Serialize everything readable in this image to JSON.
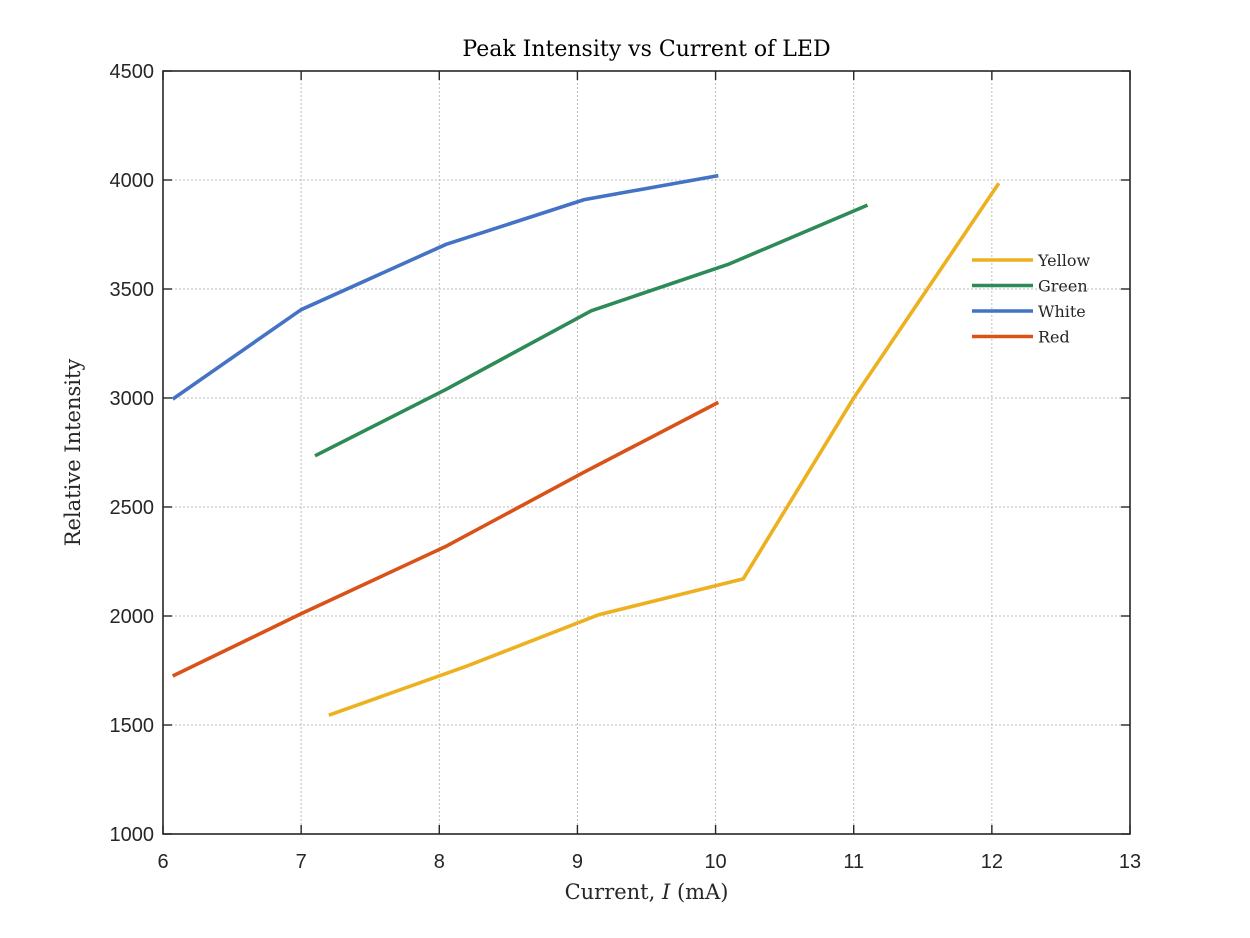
{
  "chart_data": {
    "type": "line",
    "title": "Peak Intensity vs Current of LED",
    "xlabel": "Current, ",
    "xlabel_var": "I",
    "xlabel_unit": " (mA)",
    "ylabel": "Relative Intensity",
    "xlim": [
      6,
      13
    ],
    "ylim": [
      1000,
      4500
    ],
    "xticks": [
      6,
      7,
      8,
      9,
      10,
      11,
      12,
      13
    ],
    "yticks": [
      1000,
      1500,
      2000,
      2500,
      3000,
      3500,
      4000,
      4500
    ],
    "grid": true,
    "legend_position": "right",
    "series": [
      {
        "name": "Yellow",
        "color": "#EDB120",
        "x": [
          7.2,
          8.2,
          9.15,
          10.2,
          11.0,
          12.05
        ],
        "y": [
          1545,
          1770,
          2005,
          2170,
          3000,
          3985
        ]
      },
      {
        "name": "Green",
        "color": "#2E8B57",
        "x": [
          7.1,
          8.05,
          9.1,
          10.1,
          11.1
        ],
        "y": [
          2735,
          3040,
          3400,
          3615,
          3885
        ]
      },
      {
        "name": "White",
        "color": "#4472C4",
        "x": [
          6.07,
          7.0,
          8.05,
          9.05,
          10.02
        ],
        "y": [
          2995,
          3405,
          3705,
          3910,
          4020
        ]
      },
      {
        "name": "Red",
        "color": "#D95319",
        "x": [
          6.07,
          7.0,
          8.05,
          9.05,
          10.02
        ],
        "y": [
          1725,
          2010,
          2320,
          2660,
          2980
        ]
      }
    ]
  }
}
